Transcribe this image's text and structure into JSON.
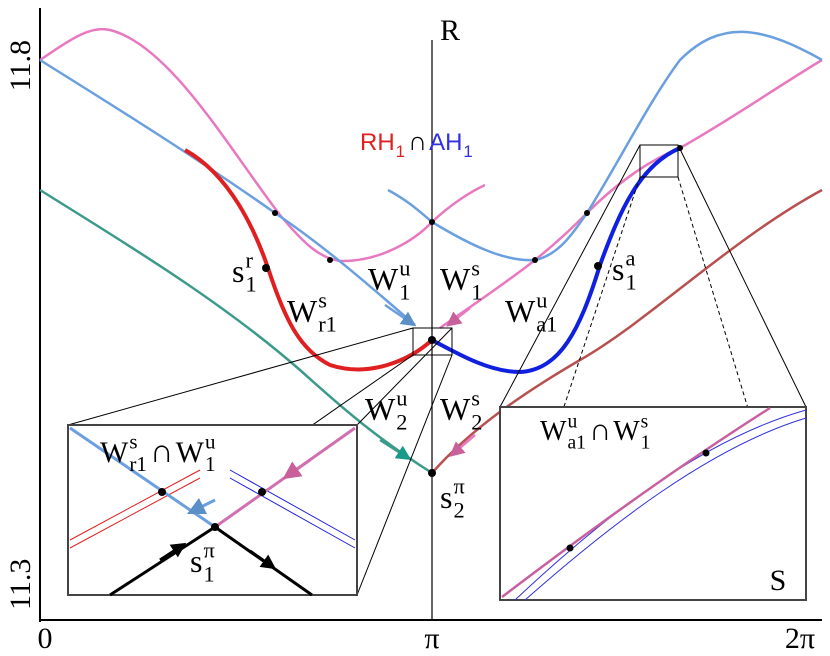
{
  "axes": {
    "y_top": "11.8",
    "y_bottom": "11.3",
    "x_left": "0",
    "x_mid": "π",
    "x_right": "2π",
    "top_label": "R",
    "inset_label": "S"
  },
  "labels": [
    {
      "base": "s",
      "sup": "r",
      "sub": "1"
    },
    {
      "base": "W",
      "sup": "s",
      "sub": "r1"
    },
    {
      "base": "W",
      "sup": "u",
      "sub": "1"
    },
    {
      "base": "W",
      "sup": "s",
      "sub": "1"
    },
    {
      "base": "W",
      "sup": "u",
      "sub": "a1"
    },
    {
      "base": "s",
      "sup": "a",
      "sub": "1"
    },
    {
      "base": "W",
      "sup": "u",
      "sub": "2"
    },
    {
      "base": "W",
      "sup": "s",
      "sub": "2"
    },
    {
      "base": "s",
      "sup": "π",
      "sub": "2"
    },
    {
      "base": "s",
      "sup": "π",
      "sub": "1"
    }
  ],
  "intersections": [
    {
      "left": {
        "base": "RH",
        "sub": "1"
      },
      "symbol": "∩",
      "right": {
        "base": "AH",
        "sub": "1"
      }
    },
    {
      "left": {
        "base": "W",
        "sup": "s",
        "sub": "r1"
      },
      "symbol": "∩",
      "right": {
        "base": "W",
        "sup": "u",
        "sub": "1"
      }
    },
    {
      "left": {
        "base": "W",
        "sup": "u",
        "sub": "a1"
      },
      "symbol": "∩",
      "right": {
        "base": "W",
        "sup": "s",
        "sub": "1"
      }
    }
  ]
}
